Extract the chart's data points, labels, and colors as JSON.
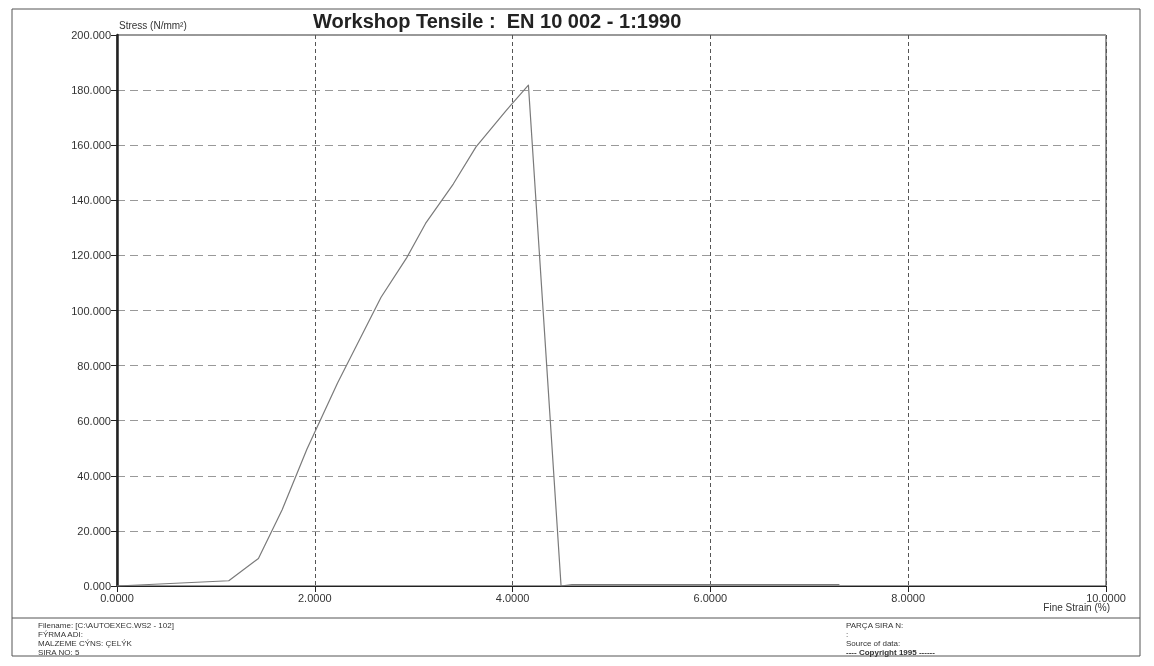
{
  "chart_data": {
    "type": "line",
    "title": "Workshop Tensile :  EN 10 002 - 1:1990",
    "xlabel": "Fine Strain (%)",
    "ylabel": "Stress (N/mm²)",
    "series": [
      {
        "color": "#7a7a7a",
        "x": [
          0,
          1.13,
          1.43,
          1.67,
          1.92,
          2.23,
          2.67,
          2.93,
          3.12,
          3.4,
          3.63,
          3.93,
          4.16,
          4.49,
          4.6,
          7.3
        ],
        "values": [
          0,
          1.9,
          10,
          27.7,
          49.6,
          73.7,
          104.8,
          119.2,
          131.6,
          145.9,
          159.4,
          172.4,
          181.8,
          0,
          0.5,
          0.5
        ]
      }
    ],
    "xlim": [
      0,
      10
    ],
    "xticks": [
      {
        "value": 0,
        "label": "0.0000"
      },
      {
        "value": 2,
        "label": "2.0000"
      },
      {
        "value": 4,
        "label": "4.0000"
      },
      {
        "value": 6,
        "label": "6.0000"
      },
      {
        "value": 8,
        "label": "8.0000"
      },
      {
        "value": 10,
        "label": "10.0000"
      }
    ],
    "ylim": [
      0,
      200
    ],
    "yticks": [
      {
        "value": 0,
        "label": "0.000"
      },
      {
        "value": 20,
        "label": "20.000"
      },
      {
        "value": 40,
        "label": "40.000"
      },
      {
        "value": 60,
        "label": "60.000"
      },
      {
        "value": 80,
        "label": "80.000"
      },
      {
        "value": 100,
        "label": "100.000"
      },
      {
        "value": 120,
        "label": "120.000"
      },
      {
        "value": 140,
        "label": "140.000"
      },
      {
        "value": 160,
        "label": "160.000"
      },
      {
        "value": 180,
        "label": "180.000"
      },
      {
        "value": 200,
        "label": "200.000"
      }
    ],
    "grid": true,
    "marker": "none",
    "line_style": "solid",
    "annotations": [
      "Filename: [C:\\AUTOEXEC.WS2 - 102]",
      "FÝRMA ADI:",
      "MALZEME CÝNS: ÇELÝK",
      "SIRA NO: 5",
      "PARÇA SIRA N:",
      ":",
      "Source of data:",
      "---- Copyright 1995 ------"
    ]
  }
}
